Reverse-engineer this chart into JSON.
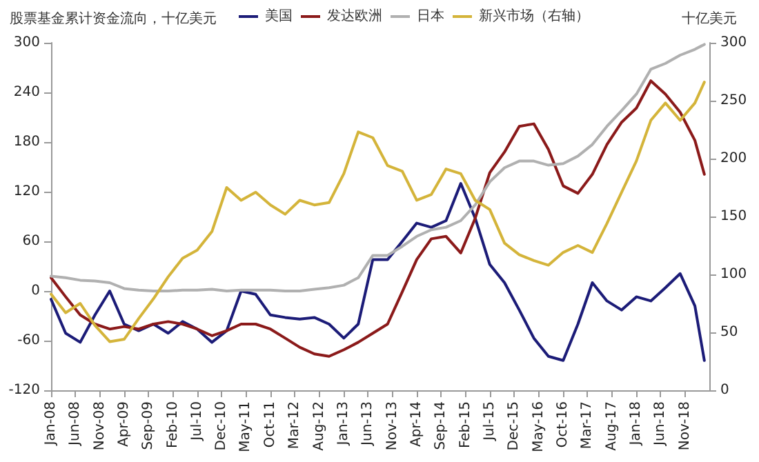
{
  "chart_data": {
    "type": "line",
    "title": "股票基金累计资金流向，十亿美元",
    "y2label": "十亿美元",
    "x": [
      "2008-01",
      "2008-04",
      "2008-07",
      "2008-10",
      "2009-01",
      "2009-04",
      "2009-07",
      "2009-10",
      "2010-01",
      "2010-04",
      "2010-07",
      "2010-10",
      "2011-01",
      "2011-04",
      "2011-07",
      "2011-10",
      "2012-01",
      "2012-04",
      "2012-07",
      "2012-10",
      "2013-01",
      "2013-04",
      "2013-07",
      "2013-10",
      "2014-01",
      "2014-04",
      "2014-07",
      "2014-10",
      "2015-01",
      "2015-04",
      "2015-07",
      "2015-10",
      "2016-01",
      "2016-04",
      "2016-07",
      "2016-10",
      "2017-01",
      "2017-04",
      "2017-07",
      "2017-10",
      "2018-01",
      "2018-04",
      "2018-07",
      "2018-10",
      "2019-01",
      "2019-03"
    ],
    "series": [
      {
        "name": "美国",
        "color": "#1c1c78",
        "values": [
          -10,
          -51,
          -62,
          -29,
          0,
          -40,
          -48,
          -40,
          -51,
          -37,
          -46,
          -62,
          -48,
          0,
          -4,
          -29,
          -32,
          -34,
          -32,
          -40,
          -57,
          -40,
          38,
          38,
          60,
          82,
          77,
          85,
          130,
          88,
          32,
          10,
          -23,
          -57,
          -79,
          -84,
          -40,
          10,
          -12,
          -23,
          -7,
          -12,
          4,
          21,
          -18,
          -84
        ]
      },
      {
        "name": "发达欧洲",
        "color": "#8b1a1a",
        "values": [
          16,
          -7,
          -29,
          -40,
          -46,
          -43,
          -46,
          -40,
          -37,
          -40,
          -46,
          -54,
          -48,
          -40,
          -40,
          -46,
          -57,
          -68,
          -76,
          -79,
          -71,
          -62,
          -51,
          -40,
          -1,
          38,
          63,
          66,
          46,
          88,
          143,
          168,
          199,
          202,
          171,
          127,
          118,
          141,
          177,
          204,
          221,
          254,
          238,
          216,
          182,
          141
        ]
      },
      {
        "name": "日本",
        "color": "#b0b0b0",
        "values": [
          18,
          16,
          13,
          12,
          10,
          3,
          1,
          0,
          0,
          1,
          1,
          2,
          0,
          1,
          1,
          1,
          0,
          0,
          2,
          4,
          7,
          16,
          43,
          43,
          54,
          66,
          74,
          77,
          85,
          104,
          132,
          149,
          157,
          157,
          152,
          154,
          163,
          177,
          199,
          218,
          238,
          268,
          275,
          285,
          292,
          298
        ]
      },
      {
        "name": "新兴市场（右轴）",
        "color": "#d4b43a",
        "axis": "y2",
        "values": [
          83,
          67,
          75,
          56,
          42,
          44,
          62,
          79,
          98,
          114,
          121,
          137,
          175,
          164,
          171,
          160,
          152,
          164,
          160,
          162,
          187,
          223,
          218,
          194,
          189,
          164,
          169,
          191,
          187,
          164,
          156,
          127,
          117,
          112,
          108,
          119,
          125,
          119,
          144,
          171,
          198,
          233,
          248,
          233,
          248,
          266
        ]
      }
    ],
    "xlim": [
      "2008-01",
      "2019-04"
    ],
    "xticks": [
      {
        "value": "2008-01",
        "label": "Jan-08"
      },
      {
        "value": "2008-06",
        "label": "Jun-08"
      },
      {
        "value": "2008-11",
        "label": "Nov-08"
      },
      {
        "value": "2009-04",
        "label": "Apr-09"
      },
      {
        "value": "2009-09",
        "label": "Sep-09"
      },
      {
        "value": "2010-02",
        "label": "Feb-10"
      },
      {
        "value": "2010-07",
        "label": "Jul-10"
      },
      {
        "value": "2010-12",
        "label": "Dec-10"
      },
      {
        "value": "2011-05",
        "label": "May-11"
      },
      {
        "value": "2011-10",
        "label": "Oct-11"
      },
      {
        "value": "2012-03",
        "label": "Mar-12"
      },
      {
        "value": "2012-08",
        "label": "Aug-12"
      },
      {
        "value": "2013-01",
        "label": "Jan-13"
      },
      {
        "value": "2013-06",
        "label": "Jun-13"
      },
      {
        "value": "2013-11",
        "label": "Nov-13"
      },
      {
        "value": "2014-04",
        "label": "Apr-14"
      },
      {
        "value": "2014-09",
        "label": "Sep-14"
      },
      {
        "value": "2015-02",
        "label": "Feb-15"
      },
      {
        "value": "2015-07",
        "label": "Jul-15"
      },
      {
        "value": "2015-12",
        "label": "Dec-15"
      },
      {
        "value": "2016-05",
        "label": "May-16"
      },
      {
        "value": "2016-10",
        "label": "Oct-16"
      },
      {
        "value": "2017-03",
        "label": "Mar-17"
      },
      {
        "value": "2017-08",
        "label": "Aug-17"
      },
      {
        "value": "2018-01",
        "label": "Jan-18"
      },
      {
        "value": "2018-06",
        "label": "Jun-18"
      },
      {
        "value": "2018-11",
        "label": "Nov-18"
      }
    ],
    "ylim": [
      -120,
      300
    ],
    "yticks": [
      -120,
      -60,
      0,
      60,
      120,
      180,
      240,
      300
    ],
    "y2lim": [
      0,
      300
    ],
    "y2ticks": [
      0,
      50,
      100,
      150,
      200,
      250,
      300
    ],
    "legend": "top",
    "grid": false,
    "marker": "none",
    "line_style": "solid"
  }
}
